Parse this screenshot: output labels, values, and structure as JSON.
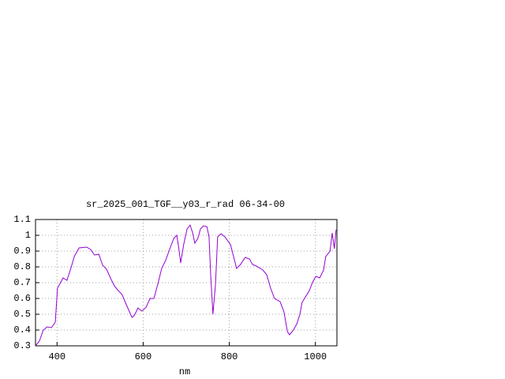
{
  "chart_data": {
    "type": "line",
    "title": "sr_2025_001_TGF__y03_r_rad 06-34-00",
    "x_label": "nm",
    "xlim": [
      350,
      1050
    ],
    "xticks": [
      400,
      600,
      800,
      1000
    ],
    "ylim": [
      0.3,
      1.1
    ],
    "yticks": [
      0.3,
      0.4,
      0.5,
      0.6,
      0.7,
      0.8,
      0.9,
      1,
      1.1
    ],
    "grid": true,
    "x": [
      350,
      359,
      368,
      377,
      387,
      396,
      401,
      414,
      423,
      432,
      440,
      451,
      469,
      478,
      487,
      497,
      506,
      515,
      524,
      533,
      542,
      551,
      561,
      574,
      579,
      588,
      597,
      607,
      616,
      625,
      634,
      643,
      652,
      662,
      671,
      678,
      683,
      687,
      694,
      702,
      709,
      715,
      720,
      727,
      733,
      740,
      748,
      753,
      757,
      762,
      768,
      773,
      781,
      790,
      803,
      810,
      817,
      826,
      837,
      847,
      854,
      863,
      878,
      887,
      896,
      905,
      918,
      927,
      935,
      940,
      949,
      957,
      964,
      969,
      977,
      986,
      993,
      1001,
      1010,
      1019,
      1024,
      1034,
      1039,
      1044,
      1048
    ],
    "series": [
      {
        "name": "sr_2025_001_TGF__y03_r_rad",
        "color": "#9400d3",
        "values": [
          0.3,
          0.33,
          0.4,
          0.42,
          0.415,
          0.45,
          0.665,
          0.73,
          0.715,
          0.79,
          0.865,
          0.92,
          0.925,
          0.91,
          0.875,
          0.88,
          0.81,
          0.785,
          0.73,
          0.68,
          0.65,
          0.625,
          0.56,
          0.48,
          0.49,
          0.54,
          0.52,
          0.545,
          0.6,
          0.6,
          0.69,
          0.79,
          0.84,
          0.915,
          0.98,
          1.0,
          0.915,
          0.825,
          0.94,
          1.04,
          1.065,
          1.015,
          0.95,
          0.98,
          1.04,
          1.06,
          1.055,
          0.99,
          0.74,
          0.5,
          0.69,
          0.99,
          1.01,
          0.99,
          0.94,
          0.865,
          0.79,
          0.815,
          0.86,
          0.85,
          0.815,
          0.805,
          0.78,
          0.75,
          0.665,
          0.6,
          0.58,
          0.515,
          0.39,
          0.37,
          0.4,
          0.44,
          0.5,
          0.575,
          0.61,
          0.65,
          0.7,
          0.74,
          0.73,
          0.78,
          0.865,
          0.9,
          1.015,
          0.915,
          1.035
        ]
      }
    ]
  }
}
